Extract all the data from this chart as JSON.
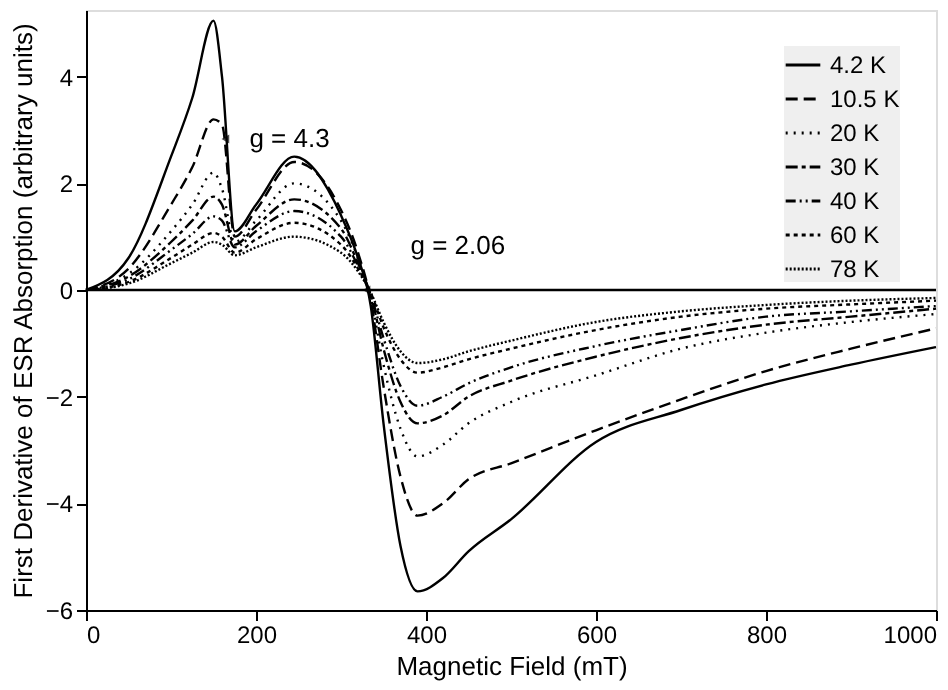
{
  "chart_data": {
    "type": "line",
    "xlabel": "Magnetic Field (mT)",
    "ylabel": "First Derivative of ESR Absorption (arbitrary units)",
    "x": [
      0,
      50,
      100,
      125,
      150,
      160,
      175,
      200,
      245,
      300,
      320,
      335,
      350,
      370,
      390,
      420,
      450,
      500,
      600,
      700,
      800,
      900,
      1000
    ],
    "series": [
      {
        "name": "4.2 K",
        "color": "#000000",
        "line_style": "solid",
        "values": [
          0,
          0.6,
          2.5,
          3.6,
          5.05,
          4.0,
          1.1,
          1.6,
          2.5,
          1.4,
          0.6,
          -0.3,
          -2.5,
          -4.8,
          -5.65,
          -5.4,
          -4.9,
          -4.3,
          -2.85,
          -2.25,
          -1.77,
          -1.4,
          -1.07
        ]
      },
      {
        "name": "10.5 K",
        "color": "#000000",
        "line_style": "dashed",
        "values": [
          0,
          0.4,
          1.6,
          2.3,
          3.2,
          3.1,
          1.0,
          1.5,
          2.4,
          1.5,
          0.7,
          -0.2,
          -1.8,
          -3.5,
          -4.23,
          -4.0,
          -3.55,
          -3.25,
          -2.63,
          -2.05,
          -1.52,
          -1.1,
          -0.72
        ]
      },
      {
        "name": "20 K",
        "color": "#000000",
        "line_style": "dotted",
        "values": [
          0,
          0.3,
          1.1,
          1.6,
          2.2,
          1.9,
          0.9,
          1.3,
          2.0,
          1.3,
          0.6,
          -0.15,
          -1.4,
          -2.6,
          -3.12,
          -2.9,
          -2.5,
          -2.1,
          -1.6,
          -1.1,
          -0.8,
          -0.6,
          -0.45
        ]
      },
      {
        "name": "30 K",
        "color": "#000000",
        "line_style": "dashed",
        "values": [
          0,
          0.25,
          0.9,
          1.3,
          1.75,
          1.6,
          0.85,
          1.2,
          1.7,
          1.15,
          0.5,
          -0.1,
          -1.1,
          -2.1,
          -2.5,
          -2.35,
          -2.0,
          -1.7,
          -1.25,
          -0.9,
          -0.65,
          -0.5,
          -0.35
        ]
      },
      {
        "name": "40 K",
        "color": "#000000",
        "line_style": "dashed",
        "values": [
          0,
          0.2,
          0.75,
          1.05,
          1.38,
          1.3,
          0.8,
          1.1,
          1.48,
          1.0,
          0.45,
          -0.1,
          -0.9,
          -1.8,
          -2.17,
          -2.0,
          -1.75,
          -1.45,
          -1.05,
          -0.75,
          -0.5,
          -0.4,
          -0.3
        ]
      },
      {
        "name": "60 K",
        "color": "#000000",
        "line_style": "dotted",
        "values": [
          0,
          0.15,
          0.6,
          0.85,
          1.07,
          1.0,
          0.7,
          0.95,
          1.26,
          0.85,
          0.4,
          -0.05,
          -0.7,
          -1.3,
          -1.55,
          -1.45,
          -1.3,
          -1.1,
          -0.75,
          -0.5,
          -0.35,
          -0.27,
          -0.2
        ]
      },
      {
        "name": "78 K",
        "color": "#000000",
        "line_style": "dotted",
        "values": [
          0,
          0.12,
          0.5,
          0.7,
          0.9,
          0.85,
          0.65,
          0.8,
          1.0,
          0.7,
          0.35,
          -0.05,
          -0.6,
          -1.15,
          -1.37,
          -1.3,
          -1.15,
          -0.95,
          -0.6,
          -0.4,
          -0.28,
          -0.2,
          -0.15
        ]
      }
    ],
    "xlim": [
      0,
      1000
    ],
    "xticks": [
      0,
      200,
      400,
      600,
      800,
      1000
    ],
    "ylim": [
      -6,
      5.25
    ],
    "yticks": [
      -6,
      -4,
      -2,
      0,
      2,
      4
    ],
    "ref_lines": [
      {
        "axis": "y",
        "value": 0,
        "color": "#000000",
        "line_style": "solid"
      }
    ],
    "annotations": [
      {
        "text": "g = 4.3",
        "x": 164,
        "y": 2.83
      },
      {
        "text": "g = 2.06",
        "x": 330,
        "y": 0
      }
    ],
    "legend": "top right",
    "grid": false
  }
}
